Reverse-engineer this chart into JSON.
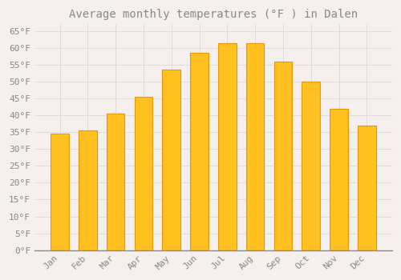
{
  "title": "Average monthly temperatures (°F ) in Dalen",
  "months": [
    "Jan",
    "Feb",
    "Mar",
    "Apr",
    "May",
    "Jun",
    "Jul",
    "Aug",
    "Sep",
    "Oct",
    "Nov",
    "Dec"
  ],
  "values": [
    34.5,
    35.5,
    40.5,
    45.5,
    53.5,
    58.5,
    61.5,
    61.5,
    56.0,
    50.0,
    42.0,
    37.0
  ],
  "bar_color": "#FFC020",
  "bar_edge_color": "#E8960A",
  "background_color": "#F5F0EE",
  "grid_color": "#E0DADA",
  "text_color": "#888888",
  "title_color": "#888888",
  "bottom_spine_color": "#888888",
  "ylim": [
    0,
    67
  ],
  "yticks": [
    0,
    5,
    10,
    15,
    20,
    25,
    30,
    35,
    40,
    45,
    50,
    55,
    60,
    65
  ],
  "title_fontsize": 10,
  "tick_fontsize": 8,
  "bar_width": 0.65
}
